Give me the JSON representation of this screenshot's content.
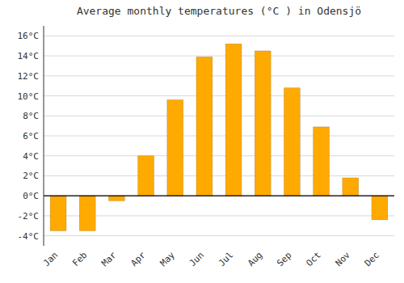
{
  "chart_data": {
    "type": "bar",
    "title": "Average monthly temperatures (°C ) in Odensjö",
    "categories": [
      "Jan",
      "Feb",
      "Mar",
      "Apr",
      "May",
      "Jun",
      "Jul",
      "Aug",
      "Sep",
      "Oct",
      "Nov",
      "Dec"
    ],
    "values": [
      -3.5,
      -3.5,
      -0.5,
      4.0,
      9.6,
      13.9,
      15.2,
      14.5,
      10.8,
      6.9,
      1.8,
      -2.4
    ],
    "color": "#FFAA00",
    "ylim": [
      -5,
      17
    ],
    "yticks": [
      {
        "value": -4,
        "label": "-4°C"
      },
      {
        "value": -2,
        "label": "-2°C"
      },
      {
        "value": 0,
        "label": "0°C"
      },
      {
        "value": 2,
        "label": "2°C"
      },
      {
        "value": 4,
        "label": "4°C"
      },
      {
        "value": 6,
        "label": "6°C"
      },
      {
        "value": 8,
        "label": "8°C"
      },
      {
        "value": 10,
        "label": "10°C"
      },
      {
        "value": 12,
        "label": "12°C"
      },
      {
        "value": 14,
        "label": "14°C"
      },
      {
        "value": 16,
        "label": "16°C"
      }
    ],
    "grid": true
  }
}
